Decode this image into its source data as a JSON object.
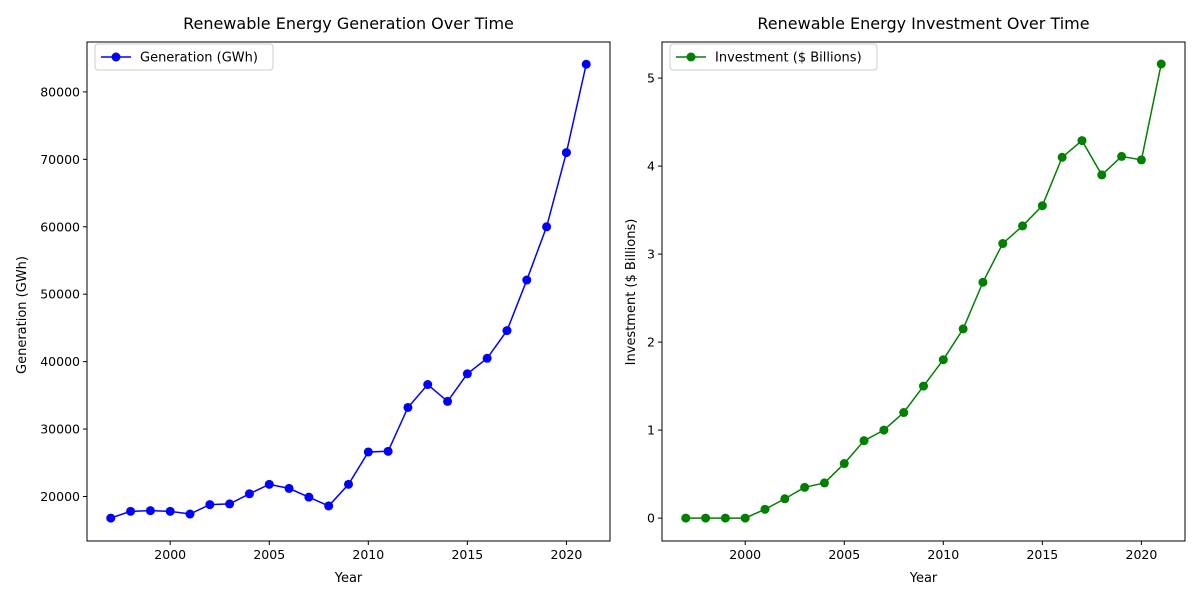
{
  "chart_data": [
    {
      "type": "line",
      "title": "Renewable Energy Generation Over Time",
      "xlabel": "Year",
      "ylabel": "Generation (GWh)",
      "xlim": [
        1995.8,
        2022.2
      ],
      "ylim": [
        13400,
        87400
      ],
      "x_ticks": [
        2000,
        2005,
        2010,
        2015,
        2020
      ],
      "y_ticks": [
        20000,
        30000,
        40000,
        50000,
        60000,
        70000,
        80000
      ],
      "grid": false,
      "legend_position": "upper-left",
      "color": "#0000ff",
      "series": [
        {
          "name": "Generation (GWh)",
          "x": [
            1997,
            1998,
            1999,
            2000,
            2001,
            2002,
            2003,
            2004,
            2005,
            2006,
            2007,
            2008,
            2009,
            2010,
            2011,
            2012,
            2013,
            2014,
            2015,
            2016,
            2017,
            2018,
            2019,
            2020,
            2021
          ],
          "values": [
            16800,
            17800,
            17900,
            17800,
            17400,
            18800,
            18900,
            20400,
            21800,
            21200,
            19900,
            18600,
            21800,
            26600,
            26700,
            33200,
            36600,
            34100,
            38200,
            40500,
            44600,
            52100,
            60000,
            71000,
            84100
          ]
        }
      ]
    },
    {
      "type": "line",
      "title": "Renewable Energy Investment Over Time",
      "xlabel": "Year",
      "ylabel": "Investment ($ Billions)",
      "xlim": [
        1995.8,
        2022.2
      ],
      "ylim": [
        -0.26,
        5.41
      ],
      "x_ticks": [
        2000,
        2005,
        2010,
        2015,
        2020
      ],
      "y_ticks": [
        0,
        1,
        2,
        3,
        4,
        5
      ],
      "grid": false,
      "legend_position": "upper-left",
      "color": "#008000",
      "series": [
        {
          "name": "Investment ($ Billions)",
          "x": [
            1997,
            1998,
            1999,
            2000,
            2001,
            2002,
            2003,
            2004,
            2005,
            2006,
            2007,
            2008,
            2009,
            2010,
            2011,
            2012,
            2013,
            2014,
            2015,
            2016,
            2017,
            2018,
            2019,
            2020,
            2021
          ],
          "values": [
            0,
            0,
            0,
            0,
            0.1,
            0.22,
            0.35,
            0.4,
            0.62,
            0.88,
            1.0,
            1.2,
            1.5,
            1.8,
            2.15,
            2.68,
            3.12,
            3.32,
            3.55,
            4.1,
            4.29,
            3.9,
            4.11,
            4.07,
            5.16
          ]
        }
      ]
    }
  ]
}
